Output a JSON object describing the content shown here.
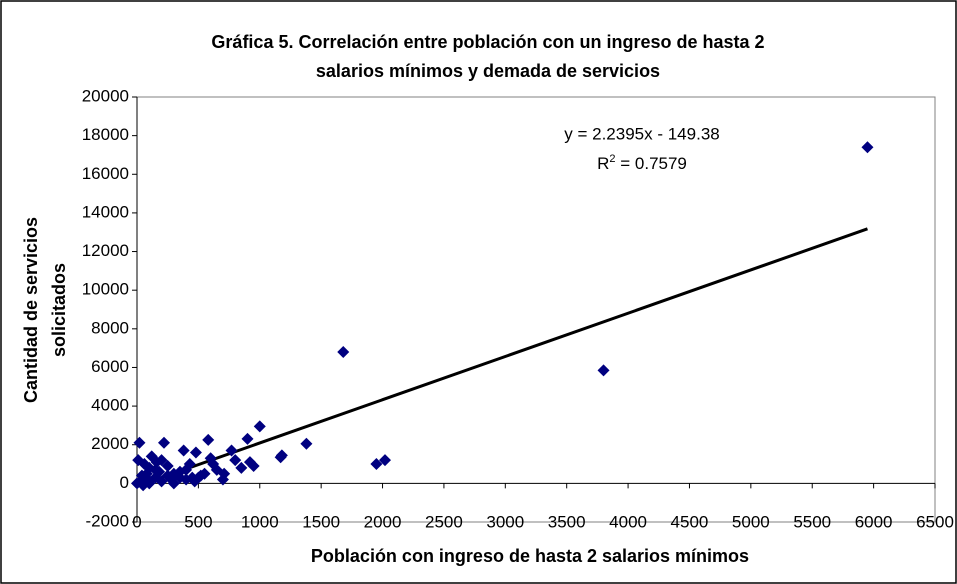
{
  "chart_data": {
    "type": "scatter",
    "title": [
      "Gráfica 5. Correlación entre población con un ingreso de hasta 2",
      "salarios mínimos y demada de servicios"
    ],
    "x_label": "Población con ingreso de hasta 2 salarios mínimos",
    "y_label": [
      "Cantidad de servicios",
      "solicitados"
    ],
    "equation": "y = 2.2395x - 149.38",
    "r_squared": {
      "base": "R",
      "sup": "2",
      "rest": " = 0.7579"
    },
    "color": "#000080",
    "x": [
      5950,
      3800,
      1680,
      1950,
      2020,
      1380,
      1180,
      1170,
      1000,
      900,
      920,
      950,
      850,
      770,
      800,
      700,
      710,
      600,
      620,
      580,
      520,
      480,
      450,
      430,
      400,
      380,
      350,
      300,
      280,
      250,
      220,
      200,
      180,
      160,
      150,
      120,
      100,
      80,
      60,
      40,
      20,
      10,
      30,
      50,
      0,
      100,
      200,
      300,
      400,
      500,
      90,
      150,
      250,
      350,
      470,
      550,
      650
    ],
    "values": [
      17400,
      5850,
      6800,
      1000,
      1200,
      2050,
      1450,
      1350,
      2950,
      2300,
      1100,
      900,
      800,
      1700,
      1200,
      200,
      500,
      1300,
      1000,
      2250,
      400,
      1600,
      300,
      1000,
      700,
      1700,
      300,
      500,
      200,
      900,
      2100,
      1200,
      600,
      1100,
      300,
      1400,
      800,
      500,
      1000,
      400,
      2100,
      1200,
      100,
      -100,
      0,
      0,
      100,
      0,
      200,
      300,
      200,
      700,
      400,
      600,
      100,
      500,
      700
    ],
    "trendline": {
      "x": [
        0,
        5950
      ],
      "values": [
        -149.38,
        13175.65
      ],
      "color": "#000000"
    },
    "xlim": [
      0,
      6500
    ],
    "xticks": [
      0,
      500,
      1000,
      1500,
      2000,
      2500,
      3000,
      3500,
      4000,
      4500,
      5000,
      5500,
      6000,
      6500
    ],
    "ylim": [
      -2000,
      20000
    ],
    "yticks": [
      -2000,
      0,
      2000,
      4000,
      6000,
      8000,
      10000,
      12000,
      14000,
      16000,
      18000,
      20000
    ],
    "grid": false
  }
}
